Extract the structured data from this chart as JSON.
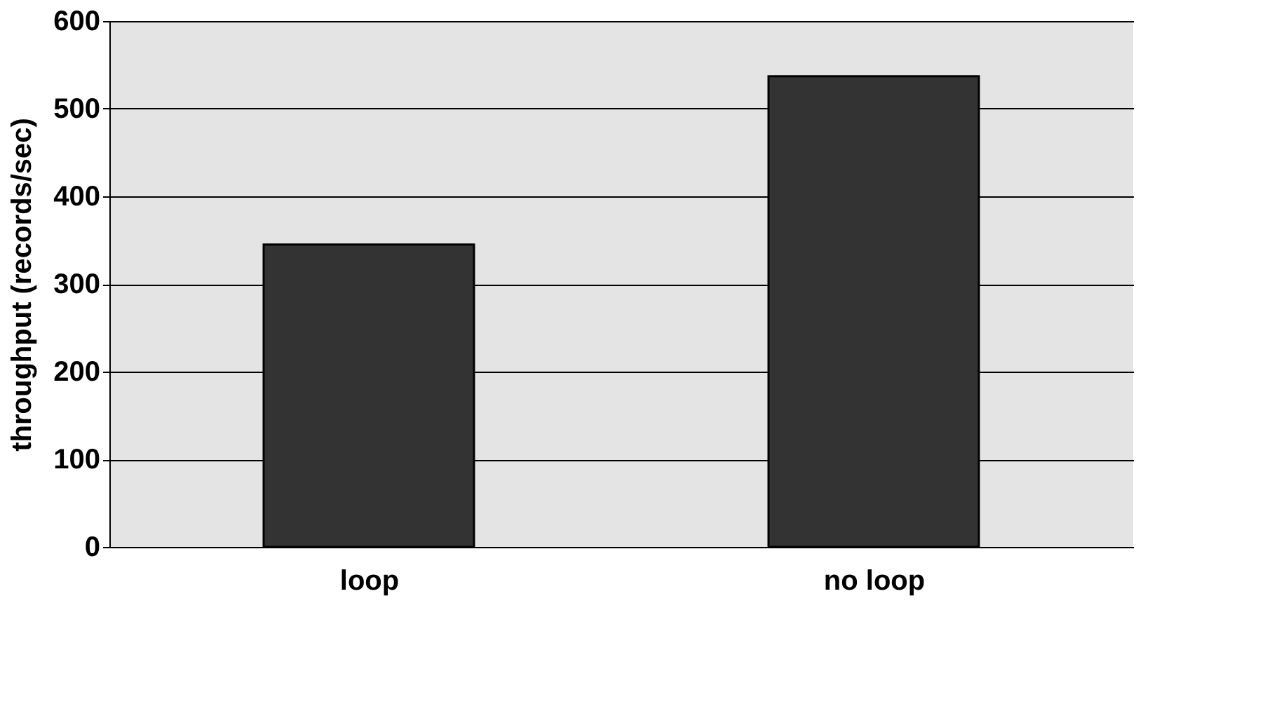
{
  "chart_data": {
    "type": "bar",
    "ylabel": "throughput (records/sec)",
    "categories": [
      "loop",
      "no loop"
    ],
    "values": [
      345,
      537
    ],
    "color": "#333333",
    "ylim": [
      0,
      600
    ],
    "yticks": [
      0,
      100,
      200,
      300,
      400,
      500,
      600
    ],
    "grid": "y"
  }
}
